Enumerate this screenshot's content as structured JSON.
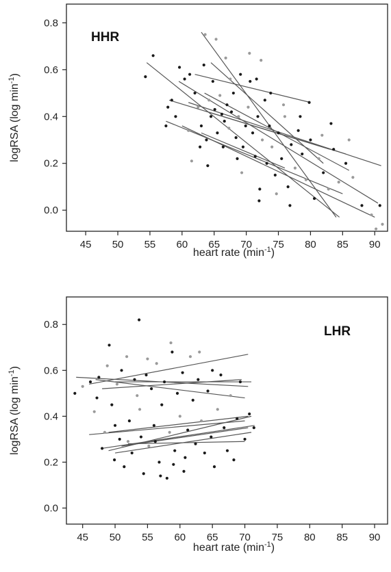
{
  "chart_data": [
    {
      "type": "scatter",
      "panel_label": "HHR",
      "xlabel_base": "heart rate (min",
      "xlabel_sup": "-1",
      "xlabel_end": ")",
      "ylabel_base": "logRSA (log min",
      "ylabel_sup": "-1",
      "ylabel_end": ")",
      "xlim": [
        42,
        92
      ],
      "ylim": [
        -0.09,
        0.88
      ],
      "xticks": [
        45,
        50,
        55,
        60,
        65,
        70,
        75,
        80,
        85,
        90
      ],
      "yticks": [
        0.0,
        0.2,
        0.4,
        0.6,
        0.8
      ],
      "ytick_labels": [
        "0.0",
        "0.2",
        "0.4",
        "0.6",
        "0.8"
      ],
      "grid": false,
      "points": [
        {
          "x": 54.3,
          "y": 0.57,
          "c": "dark"
        },
        {
          "x": 55.5,
          "y": 0.66,
          "c": "dark"
        },
        {
          "x": 57.5,
          "y": 0.36,
          "c": "dark"
        },
        {
          "x": 57.8,
          "y": 0.44,
          "c": "dark"
        },
        {
          "x": 58.4,
          "y": 0.47,
          "c": "dark"
        },
        {
          "x": 59.6,
          "y": 0.61,
          "c": "dark"
        },
        {
          "x": 60.4,
          "y": 0.56,
          "c": "dark"
        },
        {
          "x": 61.2,
          "y": 0.58,
          "c": "dark"
        },
        {
          "x": 61.5,
          "y": 0.21,
          "c": "gray"
        },
        {
          "x": 62.0,
          "y": 0.5,
          "c": "dark"
        },
        {
          "x": 62.5,
          "y": 0.44,
          "c": "gray"
        },
        {
          "x": 63.0,
          "y": 0.36,
          "c": "dark"
        },
        {
          "x": 63.4,
          "y": 0.62,
          "c": "dark"
        },
        {
          "x": 63.8,
          "y": 0.3,
          "c": "dark"
        },
        {
          "x": 64.2,
          "y": 0.47,
          "c": "gray"
        },
        {
          "x": 64.5,
          "y": 0.4,
          "c": "dark"
        },
        {
          "x": 64.8,
          "y": 0.55,
          "c": "dark"
        },
        {
          "x": 65.1,
          "y": 0.43,
          "c": "dark"
        },
        {
          "x": 65.5,
          "y": 0.33,
          "c": "dark"
        },
        {
          "x": 65.9,
          "y": 0.49,
          "c": "gray"
        },
        {
          "x": 66.2,
          "y": 0.41,
          "c": "dark"
        },
        {
          "x": 66.6,
          "y": 0.38,
          "c": "dark"
        },
        {
          "x": 67.0,
          "y": 0.45,
          "c": "dark"
        },
        {
          "x": 67.3,
          "y": 0.35,
          "c": "gray"
        },
        {
          "x": 67.7,
          "y": 0.42,
          "c": "dark"
        },
        {
          "x": 68.0,
          "y": 0.5,
          "c": "dark"
        },
        {
          "x": 68.4,
          "y": 0.31,
          "c": "dark"
        },
        {
          "x": 68.8,
          "y": 0.4,
          "c": "gray"
        },
        {
          "x": 69.1,
          "y": 0.58,
          "c": "dark"
        },
        {
          "x": 69.5,
          "y": 0.27,
          "c": "dark"
        },
        {
          "x": 69.9,
          "y": 0.36,
          "c": "dark"
        },
        {
          "x": 70.3,
          "y": 0.44,
          "c": "gray"
        },
        {
          "x": 70.6,
          "y": 0.55,
          "c": "dark"
        },
        {
          "x": 71.0,
          "y": 0.33,
          "c": "dark"
        },
        {
          "x": 71.4,
          "y": 0.23,
          "c": "dark"
        },
        {
          "x": 71.8,
          "y": 0.4,
          "c": "dark"
        },
        {
          "x": 72.1,
          "y": 0.09,
          "c": "dark"
        },
        {
          "x": 72.5,
          "y": 0.3,
          "c": "gray"
        },
        {
          "x": 72.9,
          "y": 0.47,
          "c": "dark"
        },
        {
          "x": 73.2,
          "y": 0.2,
          "c": "dark"
        },
        {
          "x": 73.6,
          "y": 0.36,
          "c": "dark"
        },
        {
          "x": 74.0,
          "y": 0.27,
          "c": "gray"
        },
        {
          "x": 74.5,
          "y": 0.15,
          "c": "dark"
        },
        {
          "x": 75.0,
          "y": 0.33,
          "c": "dark"
        },
        {
          "x": 75.5,
          "y": 0.22,
          "c": "dark"
        },
        {
          "x": 76.0,
          "y": 0.4,
          "c": "gray"
        },
        {
          "x": 76.5,
          "y": 0.1,
          "c": "dark"
        },
        {
          "x": 77.0,
          "y": 0.28,
          "c": "dark"
        },
        {
          "x": 77.6,
          "y": 0.18,
          "c": "gray"
        },
        {
          "x": 78.1,
          "y": 0.34,
          "c": "dark"
        },
        {
          "x": 78.7,
          "y": 0.24,
          "c": "dark"
        },
        {
          "x": 79.3,
          "y": 0.13,
          "c": "gray"
        },
        {
          "x": 80.0,
          "y": 0.3,
          "c": "dark"
        },
        {
          "x": 80.6,
          "y": 0.05,
          "c": "dark"
        },
        {
          "x": 81.3,
          "y": 0.22,
          "c": "gray"
        },
        {
          "x": 82.0,
          "y": 0.16,
          "c": "dark"
        },
        {
          "x": 82.8,
          "y": 0.09,
          "c": "gray"
        },
        {
          "x": 83.6,
          "y": 0.26,
          "c": "dark"
        },
        {
          "x": 84.4,
          "y": 0.12,
          "c": "gray"
        },
        {
          "x": 85.5,
          "y": 0.2,
          "c": "dark"
        },
        {
          "x": 86.6,
          "y": 0.14,
          "c": "gray"
        },
        {
          "x": 88.0,
          "y": 0.02,
          "c": "dark"
        },
        {
          "x": 89.5,
          "y": -0.02,
          "c": "gray"
        },
        {
          "x": 90.2,
          "y": -0.08,
          "c": "gray"
        },
        {
          "x": 91.2,
          "y": -0.06,
          "c": "gray"
        },
        {
          "x": 90.8,
          "y": 0.02,
          "c": "dark"
        },
        {
          "x": 63.6,
          "y": 0.75,
          "c": "gray"
        },
        {
          "x": 65.3,
          "y": 0.73,
          "c": "gray"
        },
        {
          "x": 66.8,
          "y": 0.65,
          "c": "gray"
        },
        {
          "x": 70.5,
          "y": 0.67,
          "c": "gray"
        },
        {
          "x": 71.6,
          "y": 0.56,
          "c": "dark"
        },
        {
          "x": 72.3,
          "y": 0.64,
          "c": "gray"
        },
        {
          "x": 68.6,
          "y": 0.22,
          "c": "dark"
        },
        {
          "x": 66.4,
          "y": 0.27,
          "c": "dark"
        },
        {
          "x": 64.0,
          "y": 0.19,
          "c": "dark"
        },
        {
          "x": 69.3,
          "y": 0.16,
          "c": "gray"
        },
        {
          "x": 72.0,
          "y": 0.04,
          "c": "dark"
        },
        {
          "x": 74.7,
          "y": 0.07,
          "c": "gray"
        },
        {
          "x": 76.8,
          "y": 0.02,
          "c": "dark"
        },
        {
          "x": 59.0,
          "y": 0.4,
          "c": "dark"
        },
        {
          "x": 61.0,
          "y": 0.34,
          "c": "gray"
        },
        {
          "x": 62.8,
          "y": 0.27,
          "c": "dark"
        },
        {
          "x": 67.5,
          "y": 0.56,
          "c": "gray"
        },
        {
          "x": 73.8,
          "y": 0.5,
          "c": "dark"
        },
        {
          "x": 75.8,
          "y": 0.45,
          "c": "gray"
        },
        {
          "x": 78.4,
          "y": 0.4,
          "c": "dark"
        },
        {
          "x": 79.8,
          "y": 0.46,
          "c": "dark"
        },
        {
          "x": 81.8,
          "y": 0.32,
          "c": "gray"
        },
        {
          "x": 83.2,
          "y": 0.37,
          "c": "dark"
        },
        {
          "x": 86.0,
          "y": 0.3,
          "c": "gray"
        }
      ],
      "regression_lines": [
        {
          "x": [
            54.5,
            84.5
          ],
          "y": [
            0.63,
            -0.03
          ]
        },
        {
          "x": [
            63.0,
            84.0
          ],
          "y": [
            0.76,
            -0.03
          ]
        },
        {
          "x": [
            57.5,
            85.0
          ],
          "y": [
            0.38,
            0.07
          ]
        },
        {
          "x": [
            58.0,
            83.0
          ],
          "y": [
            0.47,
            0.26
          ]
        },
        {
          "x": [
            59.5,
            90.5
          ],
          "y": [
            0.55,
            0.03
          ]
        },
        {
          "x": [
            61.0,
            91.0
          ],
          "y": [
            0.46,
            0.19
          ]
        },
        {
          "x": [
            62.0,
            80.0
          ],
          "y": [
            0.58,
            0.46
          ]
        },
        {
          "x": [
            63.5,
            86.0
          ],
          "y": [
            0.5,
            0.17
          ]
        },
        {
          "x": [
            60.0,
            90.0
          ],
          "y": [
            0.36,
            -0.03
          ]
        },
        {
          "x": [
            64.0,
            85.5
          ],
          "y": [
            0.42,
            0.24
          ]
        },
        {
          "x": [
            64.5,
            82.0
          ],
          "y": [
            0.63,
            0.2
          ]
        },
        {
          "x": [
            63.0,
            76.0
          ],
          "y": [
            0.33,
            0.18
          ]
        }
      ]
    },
    {
      "type": "scatter",
      "panel_label": "LHR",
      "xlabel_base": "heart rate (min",
      "xlabel_sup": "-1",
      "xlabel_end": ")",
      "ylabel_base": "logRSA (log min",
      "ylabel_sup": "-1",
      "ylabel_end": ")",
      "xlim": [
        42.5,
        92
      ],
      "ylim": [
        -0.07,
        0.92
      ],
      "xticks": [
        45,
        50,
        55,
        60,
        65,
        70,
        75,
        80,
        85,
        90
      ],
      "yticks": [
        0.0,
        0.2,
        0.4,
        0.6,
        0.8
      ],
      "ytick_labels": [
        "0.0",
        "0.2",
        "0.4",
        "0.6",
        "0.8"
      ],
      "grid": false,
      "points": [
        {
          "x": 43.8,
          "y": 0.5,
          "c": "dark"
        },
        {
          "x": 45.0,
          "y": 0.53,
          "c": "gray"
        },
        {
          "x": 46.2,
          "y": 0.55,
          "c": "dark"
        },
        {
          "x": 46.8,
          "y": 0.42,
          "c": "gray"
        },
        {
          "x": 47.5,
          "y": 0.57,
          "c": "dark"
        },
        {
          "x": 48.0,
          "y": 0.26,
          "c": "dark"
        },
        {
          "x": 48.4,
          "y": 0.33,
          "c": "gray"
        },
        {
          "x": 48.8,
          "y": 0.62,
          "c": "gray"
        },
        {
          "x": 49.1,
          "y": 0.71,
          "c": "dark"
        },
        {
          "x": 49.5,
          "y": 0.45,
          "c": "dark"
        },
        {
          "x": 49.9,
          "y": 0.21,
          "c": "dark"
        },
        {
          "x": 50.3,
          "y": 0.54,
          "c": "gray"
        },
        {
          "x": 50.7,
          "y": 0.3,
          "c": "dark"
        },
        {
          "x": 51.0,
          "y": 0.6,
          "c": "dark"
        },
        {
          "x": 51.4,
          "y": 0.18,
          "c": "dark"
        },
        {
          "x": 51.8,
          "y": 0.66,
          "c": "gray"
        },
        {
          "x": 52.2,
          "y": 0.38,
          "c": "dark"
        },
        {
          "x": 52.6,
          "y": 0.24,
          "c": "dark"
        },
        {
          "x": 53.0,
          "y": 0.56,
          "c": "dark"
        },
        {
          "x": 53.4,
          "y": 0.49,
          "c": "gray"
        },
        {
          "x": 53.7,
          "y": 0.82,
          "c": "dark"
        },
        {
          "x": 54.0,
          "y": 0.31,
          "c": "dark"
        },
        {
          "x": 54.4,
          "y": 0.15,
          "c": "dark"
        },
        {
          "x": 54.8,
          "y": 0.58,
          "c": "dark"
        },
        {
          "x": 55.2,
          "y": 0.27,
          "c": "gray"
        },
        {
          "x": 55.6,
          "y": 0.52,
          "c": "dark"
        },
        {
          "x": 56.0,
          "y": 0.36,
          "c": "dark"
        },
        {
          "x": 56.4,
          "y": 0.63,
          "c": "gray"
        },
        {
          "x": 56.8,
          "y": 0.2,
          "c": "dark"
        },
        {
          "x": 57.2,
          "y": 0.45,
          "c": "dark"
        },
        {
          "x": 57.6,
          "y": 0.55,
          "c": "dark"
        },
        {
          "x": 58.0,
          "y": 0.13,
          "c": "dark"
        },
        {
          "x": 58.4,
          "y": 0.33,
          "c": "gray"
        },
        {
          "x": 58.8,
          "y": 0.68,
          "c": "dark"
        },
        {
          "x": 59.2,
          "y": 0.25,
          "c": "dark"
        },
        {
          "x": 59.6,
          "y": 0.5,
          "c": "dark"
        },
        {
          "x": 60.0,
          "y": 0.4,
          "c": "gray"
        },
        {
          "x": 60.4,
          "y": 0.59,
          "c": "dark"
        },
        {
          "x": 60.8,
          "y": 0.22,
          "c": "dark"
        },
        {
          "x": 61.2,
          "y": 0.34,
          "c": "dark"
        },
        {
          "x": 61.6,
          "y": 0.66,
          "c": "gray"
        },
        {
          "x": 62.0,
          "y": 0.47,
          "c": "dark"
        },
        {
          "x": 62.4,
          "y": 0.28,
          "c": "dark"
        },
        {
          "x": 62.8,
          "y": 0.56,
          "c": "dark"
        },
        {
          "x": 63.3,
          "y": 0.38,
          "c": "gray"
        },
        {
          "x": 63.8,
          "y": 0.24,
          "c": "dark"
        },
        {
          "x": 64.3,
          "y": 0.51,
          "c": "dark"
        },
        {
          "x": 64.8,
          "y": 0.31,
          "c": "dark"
        },
        {
          "x": 65.3,
          "y": 0.18,
          "c": "dark"
        },
        {
          "x": 65.8,
          "y": 0.43,
          "c": "gray"
        },
        {
          "x": 66.3,
          "y": 0.58,
          "c": "dark"
        },
        {
          "x": 66.8,
          "y": 0.35,
          "c": "dark"
        },
        {
          "x": 67.3,
          "y": 0.25,
          "c": "dark"
        },
        {
          "x": 67.8,
          "y": 0.49,
          "c": "gray"
        },
        {
          "x": 68.3,
          "y": 0.21,
          "c": "dark"
        },
        {
          "x": 68.8,
          "y": 0.39,
          "c": "dark"
        },
        {
          "x": 69.3,
          "y": 0.55,
          "c": "dark"
        },
        {
          "x": 70.0,
          "y": 0.3,
          "c": "dark"
        },
        {
          "x": 70.7,
          "y": 0.41,
          "c": "dark"
        },
        {
          "x": 71.4,
          "y": 0.35,
          "c": "dark"
        },
        {
          "x": 52.0,
          "y": 0.29,
          "c": "gray"
        },
        {
          "x": 55.0,
          "y": 0.65,
          "c": "gray"
        },
        {
          "x": 57.0,
          "y": 0.14,
          "c": "dark"
        },
        {
          "x": 58.6,
          "y": 0.72,
          "c": "gray"
        },
        {
          "x": 60.6,
          "y": 0.16,
          "c": "dark"
        },
        {
          "x": 63.0,
          "y": 0.68,
          "c": "gray"
        },
        {
          "x": 65.0,
          "y": 0.6,
          "c": "dark"
        },
        {
          "x": 50.0,
          "y": 0.36,
          "c": "dark"
        },
        {
          "x": 47.2,
          "y": 0.48,
          "c": "dark"
        },
        {
          "x": 53.8,
          "y": 0.43,
          "c": "gray"
        },
        {
          "x": 56.2,
          "y": 0.29,
          "c": "dark"
        },
        {
          "x": 59.0,
          "y": 0.19,
          "c": "dark"
        }
      ],
      "regression_lines": [
        {
          "x": [
            44.0,
            70.5
          ],
          "y": [
            0.57,
            0.53
          ]
        },
        {
          "x": [
            46.0,
            70.5
          ],
          "y": [
            0.54,
            0.67
          ]
        },
        {
          "x": [
            47.0,
            70.0
          ],
          "y": [
            0.56,
            0.48
          ]
        },
        {
          "x": [
            48.0,
            69.5
          ],
          "y": [
            0.52,
            0.56
          ]
        },
        {
          "x": [
            50.0,
            71.0
          ],
          "y": [
            0.55,
            0.55
          ]
        },
        {
          "x": [
            49.0,
            70.5
          ],
          "y": [
            0.33,
            0.4
          ]
        },
        {
          "x": [
            46.0,
            70.0
          ],
          "y": [
            0.32,
            0.38
          ]
        },
        {
          "x": [
            48.0,
            71.5
          ],
          "y": [
            0.26,
            0.36
          ]
        },
        {
          "x": [
            50.0,
            71.0
          ],
          "y": [
            0.24,
            0.33
          ]
        },
        {
          "x": [
            51.0,
            70.5
          ],
          "y": [
            0.27,
            0.35
          ]
        },
        {
          "x": [
            52.0,
            70.0
          ],
          "y": [
            0.28,
            0.29
          ]
        },
        {
          "x": [
            49.0,
            71.0
          ],
          "y": [
            0.25,
            0.4
          ]
        }
      ]
    }
  ]
}
